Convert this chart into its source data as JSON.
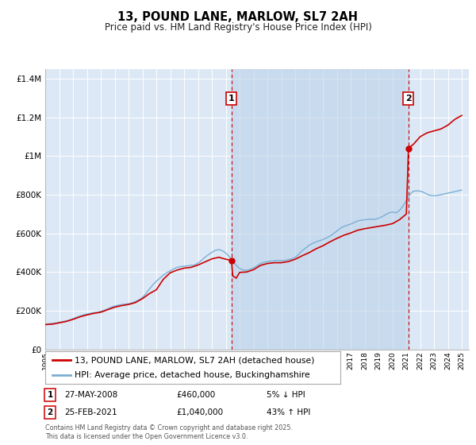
{
  "title": "13, POUND LANE, MARLOW, SL7 2AH",
  "subtitle": "Price paid vs. HM Land Registry's House Price Index (HPI)",
  "bg_color": "#dce8f5",
  "ylim": [
    0,
    1450000
  ],
  "xlim_start": 1995.0,
  "xlim_end": 2025.5,
  "yticks": [
    0,
    200000,
    400000,
    600000,
    800000,
    1000000,
    1200000,
    1400000
  ],
  "ytick_labels": [
    "£0",
    "£200K",
    "£400K",
    "£600K",
    "£800K",
    "£1M",
    "£1.2M",
    "£1.4M"
  ],
  "xtick_years": [
    1995,
    1996,
    1997,
    1998,
    1999,
    2000,
    2001,
    2002,
    2003,
    2004,
    2005,
    2006,
    2007,
    2008,
    2009,
    2010,
    2011,
    2012,
    2013,
    2014,
    2015,
    2016,
    2017,
    2018,
    2019,
    2020,
    2021,
    2022,
    2023,
    2024,
    2025
  ],
  "sale1_x": 2008.41,
  "sale1_y": 460000,
  "sale1_label": "1",
  "sale1_date": "27-MAY-2008",
  "sale1_price": "£460,000",
  "sale1_hpi": "5% ↓ HPI",
  "sale2_x": 2021.15,
  "sale2_y": 1040000,
  "sale2_label": "2",
  "sale2_date": "25-FEB-2021",
  "sale2_price": "£1,040,000",
  "sale2_hpi": "43% ↑ HPI",
  "red_line_color": "#cc0000",
  "blue_line_color": "#7aafd4",
  "vline_color": "#cc0000",
  "legend1": "13, POUND LANE, MARLOW, SL7 2AH (detached house)",
  "legend2": "HPI: Average price, detached house, Buckinghamshire",
  "footer": "Contains HM Land Registry data © Crown copyright and database right 2025.\nThis data is licensed under the Open Government Licence v3.0.",
  "hpi_bucks_data": {
    "years": [
      1995.0,
      1995.25,
      1995.5,
      1995.75,
      1996.0,
      1996.25,
      1996.5,
      1996.75,
      1997.0,
      1997.25,
      1997.5,
      1997.75,
      1998.0,
      1998.25,
      1998.5,
      1998.75,
      1999.0,
      1999.25,
      1999.5,
      1999.75,
      2000.0,
      2000.25,
      2000.5,
      2000.75,
      2001.0,
      2001.25,
      2001.5,
      2001.75,
      2002.0,
      2002.25,
      2002.5,
      2002.75,
      2003.0,
      2003.25,
      2003.5,
      2003.75,
      2004.0,
      2004.25,
      2004.5,
      2004.75,
      2005.0,
      2005.25,
      2005.5,
      2005.75,
      2006.0,
      2006.25,
      2006.5,
      2006.75,
      2007.0,
      2007.25,
      2007.5,
      2007.75,
      2008.0,
      2008.25,
      2008.5,
      2008.75,
      2009.0,
      2009.25,
      2009.5,
      2009.75,
      2010.0,
      2010.25,
      2010.5,
      2010.75,
      2011.0,
      2011.25,
      2011.5,
      2011.75,
      2012.0,
      2012.25,
      2012.5,
      2012.75,
      2013.0,
      2013.25,
      2013.5,
      2013.75,
      2014.0,
      2014.25,
      2014.5,
      2014.75,
      2015.0,
      2015.25,
      2015.5,
      2015.75,
      2016.0,
      2016.25,
      2016.5,
      2016.75,
      2017.0,
      2017.25,
      2017.5,
      2017.75,
      2018.0,
      2018.25,
      2018.5,
      2018.75,
      2019.0,
      2019.25,
      2019.5,
      2019.75,
      2020.0,
      2020.25,
      2020.5,
      2020.75,
      2021.0,
      2021.25,
      2021.5,
      2021.75,
      2022.0,
      2022.25,
      2022.5,
      2022.75,
      2023.0,
      2023.25,
      2023.5,
      2023.75,
      2024.0,
      2024.25,
      2024.5,
      2024.75,
      2025.0
    ],
    "values": [
      130000,
      132000,
      134000,
      136000,
      140000,
      143000,
      147000,
      152000,
      158000,
      166000,
      172000,
      178000,
      182000,
      186000,
      190000,
      192000,
      196000,
      202000,
      210000,
      218000,
      224000,
      228000,
      232000,
      234000,
      236000,
      240000,
      248000,
      256000,
      268000,
      288000,
      312000,
      334000,
      352000,
      368000,
      384000,
      396000,
      406000,
      416000,
      424000,
      428000,
      430000,
      432000,
      434000,
      436000,
      446000,
      460000,
      476000,
      490000,
      502000,
      512000,
      516000,
      510000,
      498000,
      480000,
      456000,
      434000,
      418000,
      410000,
      408000,
      414000,
      422000,
      432000,
      444000,
      450000,
      454000,
      456000,
      458000,
      460000,
      458000,
      460000,
      464000,
      468000,
      476000,
      492000,
      510000,
      524000,
      538000,
      548000,
      556000,
      562000,
      568000,
      576000,
      586000,
      598000,
      612000,
      626000,
      636000,
      642000,
      648000,
      656000,
      664000,
      668000,
      670000,
      672000,
      674000,
      672000,
      678000,
      686000,
      696000,
      706000,
      710000,
      706000,
      718000,
      740000,
      770000,
      800000,
      818000,
      820000,
      818000,
      812000,
      802000,
      796000,
      794000,
      796000,
      800000,
      804000,
      808000,
      812000,
      816000,
      820000,
      824000
    ]
  },
  "property_line_data": {
    "years": [
      1995.0,
      1995.5,
      1996.0,
      1996.5,
      1997.0,
      1997.5,
      1998.0,
      1998.5,
      1999.0,
      1999.5,
      2000.0,
      2000.5,
      2001.0,
      2001.5,
      2002.0,
      2002.5,
      2003.0,
      2003.5,
      2004.0,
      2004.5,
      2005.0,
      2005.5,
      2006.0,
      2006.5,
      2007.0,
      2007.5,
      2008.0,
      2008.41,
      2008.5,
      2008.75,
      2009.0,
      2009.5,
      2010.0,
      2010.5,
      2011.0,
      2011.5,
      2012.0,
      2012.5,
      2013.0,
      2013.5,
      2014.0,
      2014.5,
      2015.0,
      2015.5,
      2016.0,
      2016.5,
      2017.0,
      2017.5,
      2018.0,
      2018.5,
      2019.0,
      2019.5,
      2020.0,
      2020.5,
      2021.0,
      2021.15,
      2021.5,
      2022.0,
      2022.5,
      2023.0,
      2023.5,
      2024.0,
      2024.5,
      2025.0
    ],
    "values": [
      128000,
      130000,
      137000,
      144000,
      155000,
      168000,
      178000,
      186000,
      192000,
      205000,
      218000,
      226000,
      232000,
      242000,
      262000,
      288000,
      308000,
      362000,
      396000,
      410000,
      420000,
      424000,
      436000,
      452000,
      468000,
      476000,
      466000,
      460000,
      380000,
      368000,
      398000,
      400000,
      412000,
      434000,
      444000,
      448000,
      448000,
      454000,
      466000,
      484000,
      500000,
      520000,
      536000,
      556000,
      574000,
      590000,
      602000,
      616000,
      624000,
      630000,
      636000,
      642000,
      650000,
      670000,
      700000,
      1040000,
      1060000,
      1100000,
      1120000,
      1130000,
      1140000,
      1160000,
      1190000,
      1210000
    ]
  }
}
